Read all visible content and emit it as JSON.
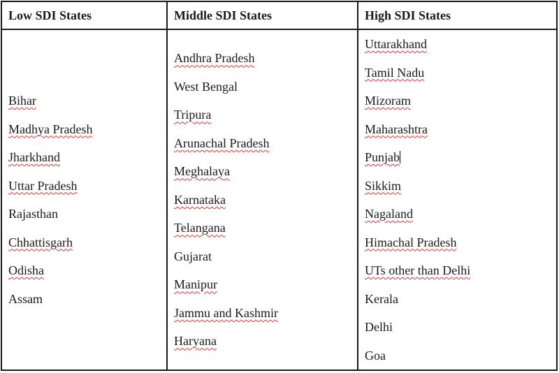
{
  "headers": [
    "Low SDI States",
    "Middle SDI States",
    "High SDI States"
  ],
  "columns": [
    [
      {
        "text": "Bihar",
        "flagged": true
      },
      {
        "text": "Madhya Pradesh",
        "flagged": true
      },
      {
        "text": "Jharkhand",
        "flagged": true
      },
      {
        "text": "Uttar Pradesh",
        "flagged": true
      },
      {
        "text": "Rajasthan",
        "flagged": false
      },
      {
        "text": "Chhattisgarh",
        "flagged": true
      },
      {
        "text": "Odisha",
        "flagged": true
      },
      {
        "text": "Assam",
        "flagged": false
      }
    ],
    [
      {
        "text": "Andhra Pradesh",
        "flagged": true
      },
      {
        "text": "West Bengal",
        "flagged": false
      },
      {
        "text": "Tripura",
        "flagged": true
      },
      {
        "text": "Arunachal Pradesh",
        "flagged": true
      },
      {
        "text": "Meghalaya",
        "flagged": true
      },
      {
        "text": "Karnataka",
        "flagged": true
      },
      {
        "text": "Telangana",
        "flagged": true
      },
      {
        "text": "Gujarat",
        "flagged": false
      },
      {
        "text": "Manipur",
        "flagged": true
      },
      {
        "text": "Jammu and Kashmir",
        "flagged": true
      },
      {
        "text": "Haryana",
        "flagged": true
      }
    ],
    [
      {
        "text": "Uttarakhand",
        "flagged": true
      },
      {
        "text": "Tamil Nadu",
        "flagged": true
      },
      {
        "text": "Mizoram",
        "flagged": true
      },
      {
        "text": "Maharashtra",
        "flagged": true
      },
      {
        "text": "Punjab",
        "flagged": true,
        "caret": true
      },
      {
        "text": "Sikkim",
        "flagged": true
      },
      {
        "text": "Nagaland",
        "flagged": true
      },
      {
        "text": "Himachal Pradesh",
        "flagged": true
      },
      {
        "text": "UTs other than Delhi",
        "flagged": true
      },
      {
        "text": "Kerala",
        "flagged": false
      },
      {
        "text": "Delhi",
        "flagged": false
      },
      {
        "text": "Goa",
        "flagged": false
      }
    ]
  ],
  "colors": {
    "spellcheck_underline": "#e03030",
    "border": "#1a1a1a"
  }
}
